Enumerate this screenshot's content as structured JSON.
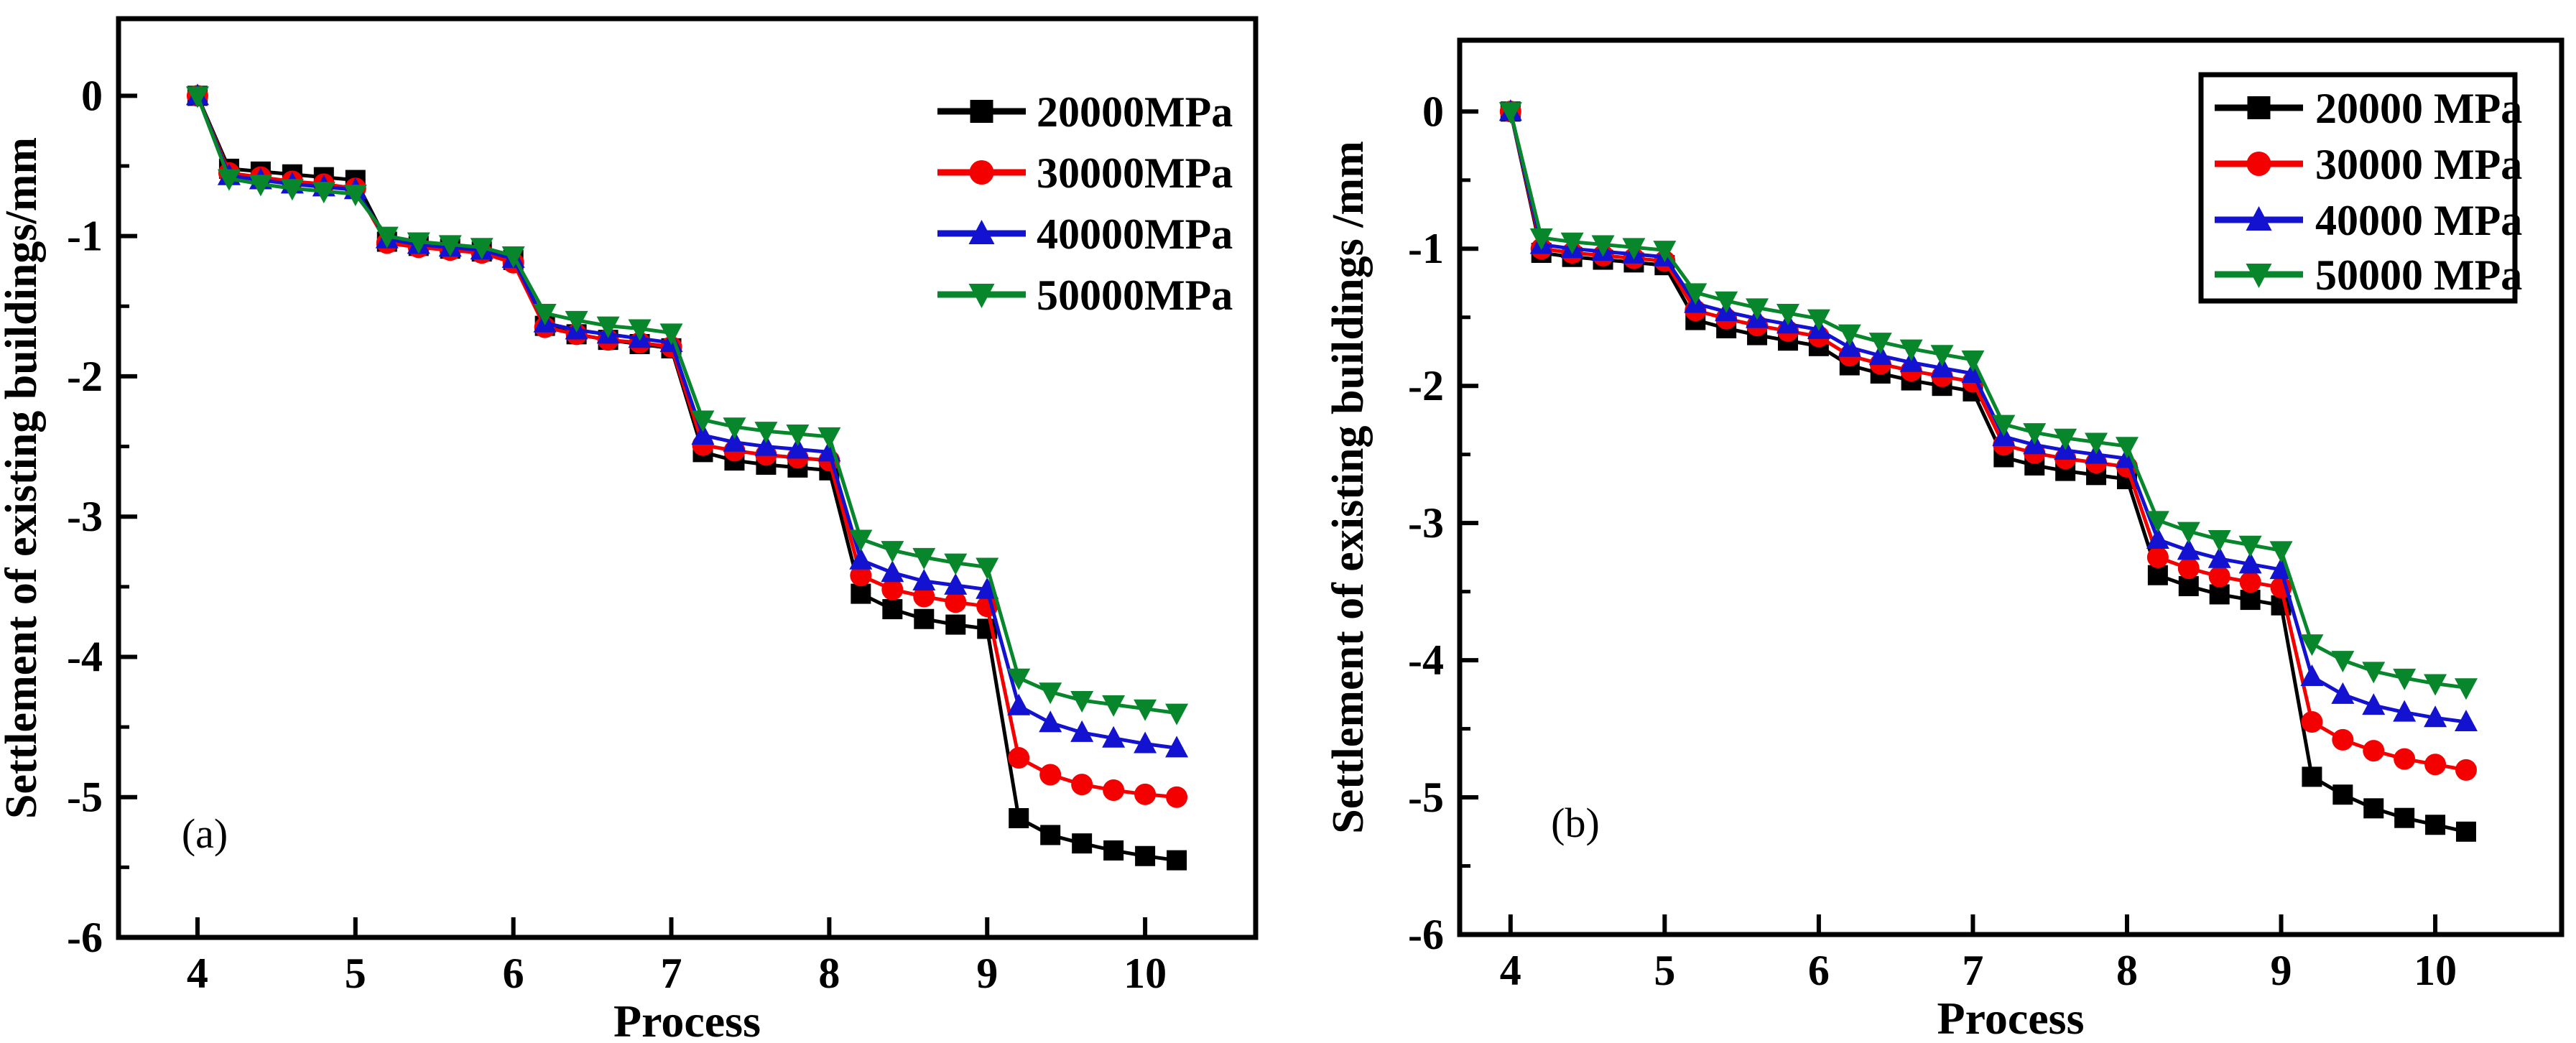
{
  "page": {
    "background": "#ffffff"
  },
  "chart_data": [
    {
      "type": "line",
      "panel_label": "(a)",
      "xlabel": "Process",
      "ylabel": "Settlement of existing buildings/mm",
      "xlim": [
        3.5,
        10.7
      ],
      "ylim": [
        -6,
        0.55
      ],
      "x_ticks": [
        4,
        5,
        6,
        7,
        8,
        9,
        10
      ],
      "y_ticks": [
        0,
        -1,
        -2,
        -3,
        -4,
        -5,
        -6
      ],
      "grid": false,
      "legend": {
        "position": "top-right-inside",
        "border": false
      },
      "x": [
        4.0,
        4.2,
        4.4,
        4.6,
        4.8,
        5.0,
        5.2,
        5.4,
        5.6,
        5.8,
        6.0,
        6.2,
        6.4,
        6.6,
        6.8,
        7.0,
        7.2,
        7.4,
        7.6,
        7.8,
        8.0,
        8.2,
        8.4,
        8.6,
        8.8,
        9.0,
        9.2,
        9.4,
        9.6,
        9.8,
        10.0,
        10.2
      ],
      "series": [
        {
          "name": "20000MPa",
          "color": "#000000",
          "marker": "square",
          "values": [
            0,
            -0.52,
            -0.54,
            -0.56,
            -0.58,
            -0.6,
            -1.04,
            -1.07,
            -1.09,
            -1.11,
            -1.17,
            -1.64,
            -1.7,
            -1.74,
            -1.77,
            -1.8,
            -2.54,
            -2.6,
            -2.63,
            -2.65,
            -2.67,
            -3.55,
            -3.66,
            -3.73,
            -3.77,
            -3.8,
            -5.15,
            -5.27,
            -5.33,
            -5.38,
            -5.42,
            -5.45
          ]
        },
        {
          "name": "30000MPa",
          "color": "#f40000",
          "marker": "circle",
          "values": [
            0,
            -0.55,
            -0.58,
            -0.61,
            -0.63,
            -0.66,
            -1.05,
            -1.08,
            -1.1,
            -1.12,
            -1.19,
            -1.65,
            -1.7,
            -1.74,
            -1.76,
            -1.79,
            -2.49,
            -2.53,
            -2.56,
            -2.58,
            -2.6,
            -3.42,
            -3.52,
            -3.57,
            -3.61,
            -3.64,
            -4.72,
            -4.84,
            -4.91,
            -4.95,
            -4.98,
            -5.0
          ]
        },
        {
          "name": "40000MPa",
          "color": "#1212d0",
          "marker": "triangle-up",
          "values": [
            0,
            -0.57,
            -0.6,
            -0.63,
            -0.65,
            -0.67,
            -1.02,
            -1.06,
            -1.08,
            -1.1,
            -1.16,
            -1.62,
            -1.67,
            -1.7,
            -1.73,
            -1.76,
            -2.42,
            -2.47,
            -2.5,
            -2.52,
            -2.54,
            -3.31,
            -3.4,
            -3.46,
            -3.49,
            -3.52,
            -4.35,
            -4.47,
            -4.54,
            -4.58,
            -4.62,
            -4.65
          ]
        },
        {
          "name": "50000MPa",
          "color": "#07862b",
          "marker": "triangle-down",
          "values": [
            0,
            -0.59,
            -0.63,
            -0.66,
            -0.68,
            -0.7,
            -1.0,
            -1.04,
            -1.06,
            -1.08,
            -1.14,
            -1.55,
            -1.6,
            -1.64,
            -1.66,
            -1.69,
            -2.31,
            -2.36,
            -2.39,
            -2.41,
            -2.43,
            -3.16,
            -3.24,
            -3.29,
            -3.33,
            -3.36,
            -4.15,
            -4.25,
            -4.31,
            -4.34,
            -4.37,
            -4.4
          ]
        }
      ]
    },
    {
      "type": "line",
      "panel_label": "(b)",
      "xlabel": "Process",
      "ylabel": "Settlement of existing buildings /mm",
      "xlim": [
        3.67,
        10.82
      ],
      "ylim": [
        -6,
        0.52
      ],
      "x_ticks": [
        4,
        5,
        6,
        7,
        8,
        9,
        10
      ],
      "y_ticks": [
        0,
        -1,
        -2,
        -3,
        -4,
        -5,
        -6
      ],
      "grid": false,
      "legend": {
        "position": "top-right-inside",
        "border": true
      },
      "x": [
        4.0,
        4.2,
        4.4,
        4.6,
        4.8,
        5.0,
        5.2,
        5.4,
        5.6,
        5.8,
        6.0,
        6.2,
        6.4,
        6.6,
        6.8,
        7.0,
        7.2,
        7.4,
        7.6,
        7.8,
        8.0,
        8.2,
        8.4,
        8.6,
        8.8,
        9.0,
        9.2,
        9.4,
        9.6,
        9.8,
        10.0,
        10.2
      ],
      "series": [
        {
          "name": "20000 MPa",
          "color": "#000000",
          "marker": "square",
          "values": [
            0,
            -1.03,
            -1.06,
            -1.08,
            -1.1,
            -1.12,
            -1.52,
            -1.58,
            -1.63,
            -1.67,
            -1.71,
            -1.85,
            -1.91,
            -1.96,
            -2.0,
            -2.04,
            -2.52,
            -2.58,
            -2.62,
            -2.65,
            -2.68,
            -3.38,
            -3.46,
            -3.52,
            -3.56,
            -3.6,
            -4.85,
            -4.98,
            -5.08,
            -5.15,
            -5.2,
            -5.25
          ]
        },
        {
          "name": "30000 MPa",
          "color": "#f40000",
          "marker": "circle",
          "values": [
            0,
            -1.0,
            -1.03,
            -1.05,
            -1.07,
            -1.09,
            -1.45,
            -1.51,
            -1.56,
            -1.6,
            -1.64,
            -1.78,
            -1.84,
            -1.89,
            -1.93,
            -1.97,
            -2.43,
            -2.49,
            -2.53,
            -2.56,
            -2.59,
            -3.25,
            -3.33,
            -3.39,
            -3.43,
            -3.47,
            -4.45,
            -4.58,
            -4.66,
            -4.72,
            -4.76,
            -4.8
          ]
        },
        {
          "name": "40000 MPa",
          "color": "#1212d0",
          "marker": "triangle-up",
          "values": [
            0,
            -0.97,
            -1.0,
            -1.02,
            -1.04,
            -1.06,
            -1.4,
            -1.46,
            -1.51,
            -1.55,
            -1.59,
            -1.72,
            -1.78,
            -1.83,
            -1.87,
            -1.91,
            -2.37,
            -2.43,
            -2.47,
            -2.5,
            -2.53,
            -3.12,
            -3.2,
            -3.26,
            -3.3,
            -3.34,
            -4.12,
            -4.25,
            -4.33,
            -4.38,
            -4.42,
            -4.45
          ]
        },
        {
          "name": "50000 MPa",
          "color": "#07862b",
          "marker": "triangle-down",
          "values": [
            0,
            -0.92,
            -0.95,
            -0.97,
            -0.99,
            -1.01,
            -1.32,
            -1.38,
            -1.43,
            -1.47,
            -1.51,
            -1.62,
            -1.68,
            -1.73,
            -1.77,
            -1.81,
            -2.28,
            -2.34,
            -2.38,
            -2.41,
            -2.44,
            -2.98,
            -3.06,
            -3.12,
            -3.16,
            -3.2,
            -3.88,
            -4.0,
            -4.08,
            -4.13,
            -4.17,
            -4.2
          ]
        }
      ]
    }
  ]
}
